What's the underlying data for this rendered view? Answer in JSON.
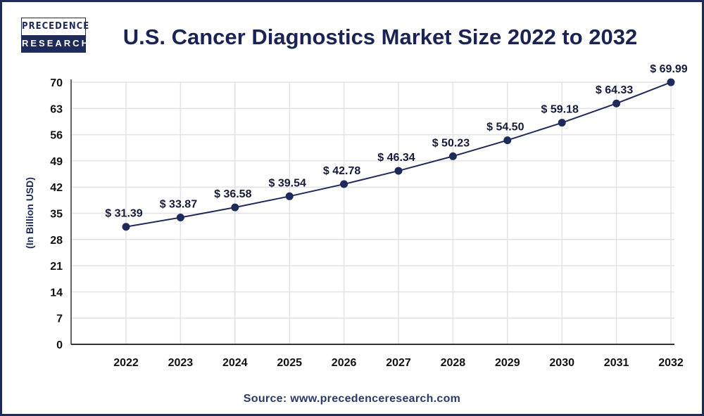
{
  "logo": {
    "line1": "PRECEDENCE",
    "line2": "RESEARCH"
  },
  "source": "Source: www.precedenceresearch.com",
  "colors": {
    "line": "#1e2a5a",
    "frame": "#1e2a5a",
    "grid": "#e3e3e3"
  },
  "chart_data": {
    "type": "line",
    "title": "U.S. Cancer Diagnostics Market Size 2022 to 2032",
    "xlabel": "",
    "ylabel": "(In Billion USD)",
    "categories": [
      "2022",
      "2023",
      "2024",
      "2025",
      "2026",
      "2027",
      "2028",
      "2029",
      "2030",
      "2031",
      "2032"
    ],
    "values": [
      31.39,
      33.87,
      36.58,
      39.54,
      42.78,
      46.34,
      50.23,
      54.5,
      59.18,
      64.33,
      69.99
    ],
    "data_labels": [
      "$ 31.39",
      "$ 33.87",
      "$ 36.58",
      "$ 39.54",
      "$ 42.78",
      "$ 46.34",
      "$ 50.23",
      "$ 54.50",
      "$ 59.18",
      "$ 64.33",
      "$ 69.99"
    ],
    "ylim": [
      0,
      70
    ],
    "yticks": [
      0,
      7,
      14,
      21,
      28,
      35,
      42,
      49,
      56,
      63,
      70
    ],
    "grid": true,
    "legend": "none"
  }
}
